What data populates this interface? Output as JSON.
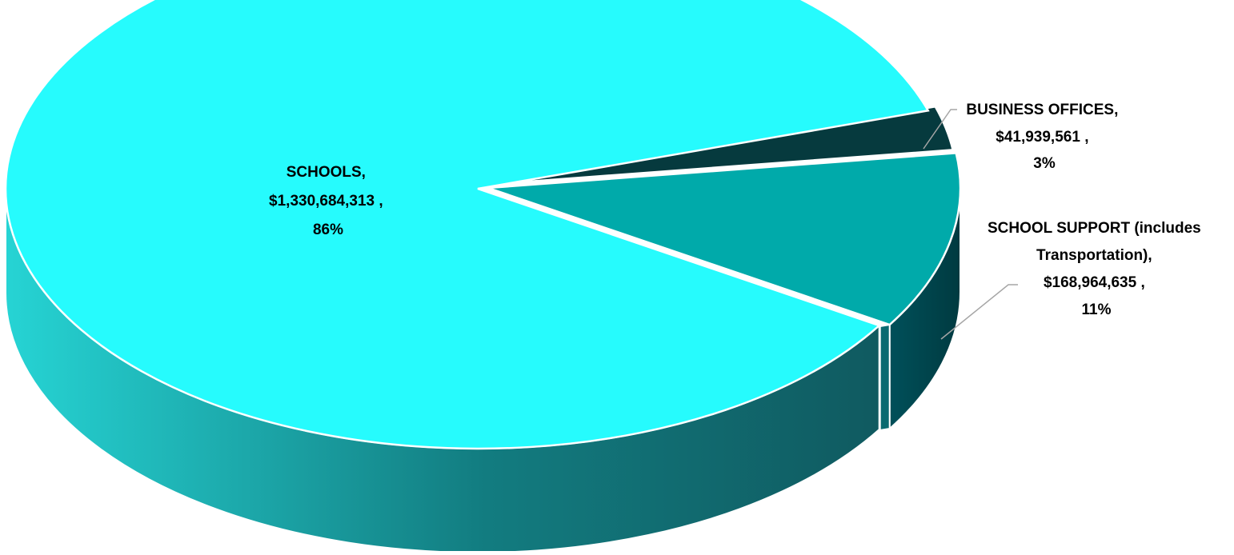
{
  "chart_data": {
    "type": "pie",
    "style": "3d",
    "title": "",
    "slices": [
      {
        "name": "SCHOOLS",
        "value": 1330684313,
        "percent": 86,
        "color": "#26fbfd",
        "label_lines": [
          "SCHOOLS,",
          "$1,330,684,313 ,",
          "86%"
        ]
      },
      {
        "name": "SCHOOL SUPPORT (includes Transportation)",
        "value": 168964635,
        "percent": 11,
        "color": "#00aaaa",
        "label_lines": [
          "SCHOOL SUPPORT (includes",
          "Transportation),",
          "$168,964,635 ,",
          "11%"
        ]
      },
      {
        "name": "BUSINESS OFFICES",
        "value": 41939561,
        "percent": 3,
        "color": "#063a3e",
        "label_lines": [
          "BUSINESS OFFICES,",
          "$41,939,561 ,",
          "3%"
        ]
      }
    ],
    "legend": "none",
    "side_gradient": [
      "#26d4d4",
      "#105a60"
    ]
  }
}
